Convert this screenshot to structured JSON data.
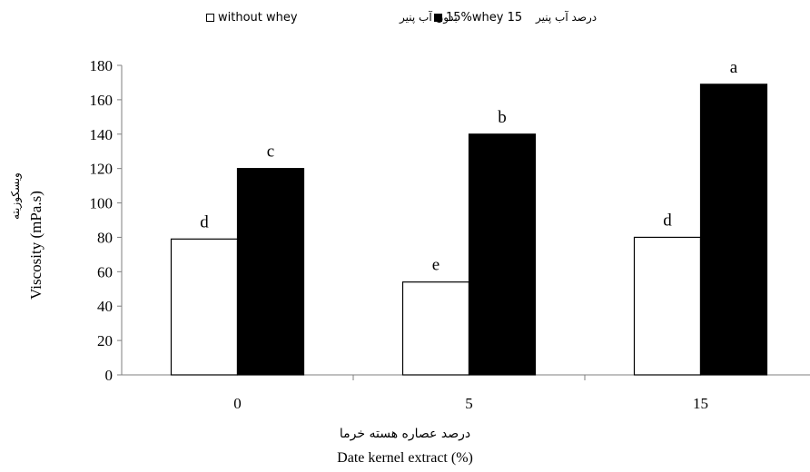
{
  "legend": {
    "series1_en": "without whey",
    "series1_fa": "بدون آب پنیر",
    "series2_en": "15%whey 15",
    "series2_fa": "درصد آب پنیر"
  },
  "axis": {
    "x_title_fa": "درصد عصاره هسته خرما",
    "x_title_en": "Date kernel extract (%)",
    "y_title_fa": "ویسکوزیته",
    "y_title_en": "Viscosity (mPa.s)"
  },
  "chart_data": {
    "type": "bar",
    "categories": [
      "0",
      "5",
      "15"
    ],
    "series": [
      {
        "name": "without whey",
        "values": [
          79,
          54,
          80
        ],
        "labels": [
          "d",
          "e",
          "d"
        ],
        "color": "#ffffff"
      },
      {
        "name": "15%whey 15",
        "values": [
          120,
          140,
          169
        ],
        "labels": [
          "c",
          "b",
          "a"
        ],
        "color": "#000000"
      }
    ],
    "xlabel": "Date kernel extract (%)",
    "ylabel": "Viscosity (mPa.s)",
    "ylim": [
      0,
      180
    ],
    "yticks": [
      0,
      20,
      40,
      60,
      80,
      100,
      120,
      140,
      160,
      180
    ],
    "grid": false,
    "legend_position": "top"
  }
}
